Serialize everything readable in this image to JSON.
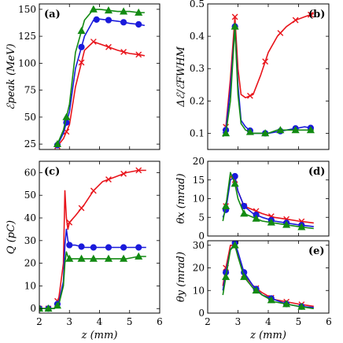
{
  "chart_data": [
    {
      "type": "line",
      "panel": "(a)",
      "ylabel": "ℰpeak (MeV)",
      "xlabel": "",
      "xlim": [
        2,
        6
      ],
      "ylim": [
        20,
        155
      ],
      "xticks": [
        2,
        3,
        4,
        5,
        6
      ],
      "yticks": [
        25,
        50,
        75,
        100,
        125,
        150
      ],
      "show_xticklabels": false,
      "series": [
        {
          "color": "#e8141b",
          "marker": "x",
          "x": [
            2.6,
            2.8,
            3.0,
            3.2,
            3.5,
            3.8,
            4.0,
            4.3,
            4.6,
            5.0,
            5.3,
            5.5
          ],
          "y": [
            23,
            30,
            43,
            78,
            112,
            120,
            118,
            115,
            112,
            109,
            108,
            107
          ],
          "marker_x": [
            2.6,
            2.9,
            3.4,
            3.8,
            4.3,
            4.8,
            5.3
          ]
        },
        {
          "color": "#1a1adb",
          "marker": "o",
          "x": [
            2.6,
            2.8,
            3.0,
            3.2,
            3.5,
            3.8,
            4.0,
            4.3,
            4.6,
            5.0,
            5.3,
            5.5
          ],
          "y": [
            24,
            35,
            55,
            95,
            125,
            140,
            141,
            140,
            139,
            137,
            136,
            135
          ],
          "marker_x": [
            2.6,
            2.9,
            3.4,
            3.9,
            4.3,
            4.8,
            5.3
          ]
        },
        {
          "color": "#138a13",
          "marker": "^",
          "x": [
            2.6,
            2.8,
            3.0,
            3.2,
            3.5,
            3.8,
            4.0,
            4.3,
            4.6,
            5.0,
            5.3,
            5.5
          ],
          "y": [
            25,
            38,
            62,
            110,
            140,
            150,
            150,
            149,
            148,
            148,
            147,
            147
          ],
          "marker_x": [
            2.6,
            2.9,
            3.4,
            3.8,
            4.3,
            4.8,
            5.3
          ]
        }
      ]
    },
    {
      "type": "line",
      "panel": "(b)",
      "ylabel": "Δℰ/ℰFWHM",
      "xlabel": "",
      "xlim": [
        2,
        6
      ],
      "ylim": [
        0.05,
        0.5
      ],
      "xticks": [
        2,
        3,
        4,
        5,
        6
      ],
      "yticks": [
        0.1,
        0.2,
        0.3,
        0.4,
        0.5
      ],
      "show_xticklabels": false,
      "series": [
        {
          "color": "#e8141b",
          "marker": "x",
          "x": [
            2.5,
            2.6,
            2.75,
            2.9,
            3.0,
            3.1,
            3.25,
            3.5,
            3.75,
            4.0,
            4.3,
            4.6,
            4.9,
            5.2,
            5.5
          ],
          "y": [
            0.11,
            0.12,
            0.27,
            0.46,
            0.3,
            0.22,
            0.21,
            0.22,
            0.28,
            0.35,
            0.4,
            0.43,
            0.45,
            0.46,
            0.47
          ],
          "marker_x": [
            2.6,
            2.9,
            3.4,
            3.9,
            4.4,
            4.9,
            5.4
          ]
        },
        {
          "color": "#1a1adb",
          "marker": "o",
          "x": [
            2.5,
            2.6,
            2.75,
            2.9,
            3.0,
            3.1,
            3.25,
            3.5,
            3.75,
            4.0,
            4.3,
            4.6,
            4.9,
            5.2,
            5.5
          ],
          "y": [
            0.1,
            0.11,
            0.24,
            0.43,
            0.25,
            0.14,
            0.12,
            0.1,
            0.1,
            0.1,
            0.105,
            0.11,
            0.115,
            0.12,
            0.115
          ],
          "marker_x": [
            2.6,
            2.9,
            3.4,
            3.9,
            4.4,
            4.9,
            5.4
          ]
        },
        {
          "color": "#138a13",
          "marker": "^",
          "x": [
            2.5,
            2.6,
            2.75,
            2.9,
            3.0,
            3.1,
            3.25,
            3.5,
            3.75,
            4.0,
            4.3,
            4.6,
            4.9,
            5.2,
            5.5
          ],
          "y": [
            0.09,
            0.1,
            0.2,
            0.43,
            0.22,
            0.13,
            0.11,
            0.1,
            0.1,
            0.1,
            0.11,
            0.11,
            0.11,
            0.11,
            0.11
          ],
          "marker_x": [
            2.6,
            2.9,
            3.4,
            3.9,
            4.4,
            4.9,
            5.4
          ]
        }
      ]
    },
    {
      "type": "line",
      "panel": "(c)",
      "ylabel": "Q (pC)",
      "xlabel": "z (mm)",
      "xlim": [
        2,
        6
      ],
      "ylim": [
        -2,
        65
      ],
      "xticks": [
        2,
        3,
        4,
        5,
        6
      ],
      "yticks": [
        0,
        10,
        20,
        30,
        40,
        50,
        60
      ],
      "show_xticklabels": true,
      "series": [
        {
          "color": "#e8141b",
          "marker": "x",
          "x": [
            2.0,
            2.5,
            2.65,
            2.8,
            2.85,
            2.9,
            2.95,
            3.0,
            3.2,
            3.5,
            3.8,
            4.1,
            4.5,
            4.9,
            5.3,
            5.55
          ],
          "y": [
            0,
            0,
            5,
            20,
            52,
            40,
            35,
            38,
            41,
            46,
            52,
            56,
            58,
            60,
            61,
            61
          ],
          "marker_x": [
            2.0,
            2.3,
            2.6,
            3.0,
            3.4,
            3.8,
            4.3,
            4.8,
            5.3
          ]
        },
        {
          "color": "#1a1adb",
          "marker": "o",
          "x": [
            2.0,
            2.5,
            2.65,
            2.8,
            2.85,
            2.9,
            2.95,
            3.0,
            3.2,
            3.5,
            3.8,
            4.1,
            4.5,
            4.9,
            5.3,
            5.55
          ],
          "y": [
            0,
            0,
            3,
            12,
            28,
            35,
            30,
            28,
            28,
            27,
            27,
            27,
            27,
            27,
            27,
            27
          ],
          "marker_x": [
            2.0,
            2.3,
            2.6,
            3.0,
            3.4,
            3.8,
            4.3,
            4.8,
            5.3
          ]
        },
        {
          "color": "#138a13",
          "marker": "^",
          "x": [
            2.0,
            2.5,
            2.65,
            2.8,
            2.85,
            2.9,
            2.95,
            3.0,
            3.2,
            3.5,
            3.8,
            4.1,
            4.5,
            4.9,
            5.3,
            5.55
          ],
          "y": [
            0,
            0,
            2,
            10,
            20,
            25,
            23,
            22,
            22,
            22,
            22,
            22,
            22,
            22,
            23,
            23
          ],
          "marker_x": [
            2.0,
            2.3,
            2.6,
            3.0,
            3.4,
            3.8,
            4.3,
            4.8,
            5.3
          ]
        }
      ]
    },
    {
      "type": "line",
      "panel": "(d)",
      "ylabel": "θx (mrad)",
      "xlabel": "",
      "xlim": [
        2,
        6
      ],
      "ylim": [
        0,
        20
      ],
      "xticks": [
        2,
        3,
        4,
        5,
        6
      ],
      "yticks": [
        0,
        5,
        10,
        15,
        20
      ],
      "show_xticklabels": false,
      "series": [
        {
          "color": "#e8141b",
          "marker": "x",
          "x": [
            2.5,
            2.6,
            2.75,
            2.9,
            3.0,
            3.2,
            3.5,
            3.8,
            4.2,
            4.6,
            5.0,
            5.5
          ],
          "y": [
            7,
            8,
            16,
            15,
            12,
            8,
            7,
            6,
            5,
            4.5,
            4,
            3.5
          ],
          "marker_x": [
            2.6,
            2.9,
            3.2,
            3.6,
            4.1,
            4.6,
            5.1
          ]
        },
        {
          "color": "#1a1adb",
          "marker": "o",
          "x": [
            2.5,
            2.6,
            2.75,
            2.9,
            3.0,
            3.2,
            3.5,
            3.8,
            4.2,
            4.6,
            5.0,
            5.5
          ],
          "y": [
            5,
            7,
            15,
            16,
            12,
            8,
            6,
            5,
            4,
            3.5,
            3,
            2.5
          ],
          "marker_x": [
            2.6,
            2.9,
            3.2,
            3.6,
            4.1,
            4.6,
            5.1
          ]
        },
        {
          "color": "#138a13",
          "marker": "^",
          "x": [
            2.5,
            2.6,
            2.75,
            2.9,
            3.0,
            3.2,
            3.5,
            3.8,
            4.2,
            4.6,
            5.0,
            5.5
          ],
          "y": [
            4,
            8,
            17,
            14,
            10,
            6,
            5,
            4,
            3.5,
            3,
            2.5,
            2
          ],
          "marker_x": [
            2.6,
            2.9,
            3.2,
            3.6,
            4.1,
            4.6,
            5.1
          ]
        }
      ]
    },
    {
      "type": "line",
      "panel": "(e)",
      "ylabel": "θy (mrad)",
      "xlabel": "z (mm)",
      "xlim": [
        2,
        6
      ],
      "ylim": [
        0,
        32
      ],
      "xticks": [
        2,
        3,
        4,
        5,
        6
      ],
      "yticks": [
        0,
        10,
        20,
        30
      ],
      "show_xticklabels": true,
      "series": [
        {
          "color": "#e8141b",
          "marker": "x",
          "x": [
            2.5,
            2.6,
            2.75,
            2.9,
            3.0,
            3.2,
            3.5,
            3.8,
            4.2,
            4.6,
            5.0,
            5.5
          ],
          "y": [
            12,
            20,
            30,
            30,
            25,
            17,
            12,
            9,
            6,
            5,
            4,
            3
          ],
          "marker_x": [
            2.6,
            2.9,
            3.2,
            3.6,
            4.1,
            4.6,
            5.1
          ]
        },
        {
          "color": "#1a1adb",
          "marker": "o",
          "x": [
            2.5,
            2.6,
            2.75,
            2.9,
            3.0,
            3.2,
            3.5,
            3.8,
            4.2,
            4.6,
            5.0,
            5.5
          ],
          "y": [
            10,
            18,
            28,
            31,
            27,
            18,
            12,
            8,
            6,
            4,
            3,
            2.5
          ],
          "marker_x": [
            2.6,
            2.9,
            3.2,
            3.6,
            4.1,
            4.6,
            5.1
          ]
        },
        {
          "color": "#138a13",
          "marker": "^",
          "x": [
            2.5,
            2.6,
            2.75,
            2.9,
            3.0,
            3.2,
            3.5,
            3.8,
            4.2,
            4.6,
            5.0,
            5.5
          ],
          "y": [
            8,
            16,
            28,
            30,
            25,
            16,
            11,
            8,
            5,
            4,
            3,
            2
          ],
          "marker_x": [
            2.6,
            2.9,
            3.2,
            3.6,
            4.1,
            4.6,
            5.1
          ]
        }
      ]
    }
  ]
}
